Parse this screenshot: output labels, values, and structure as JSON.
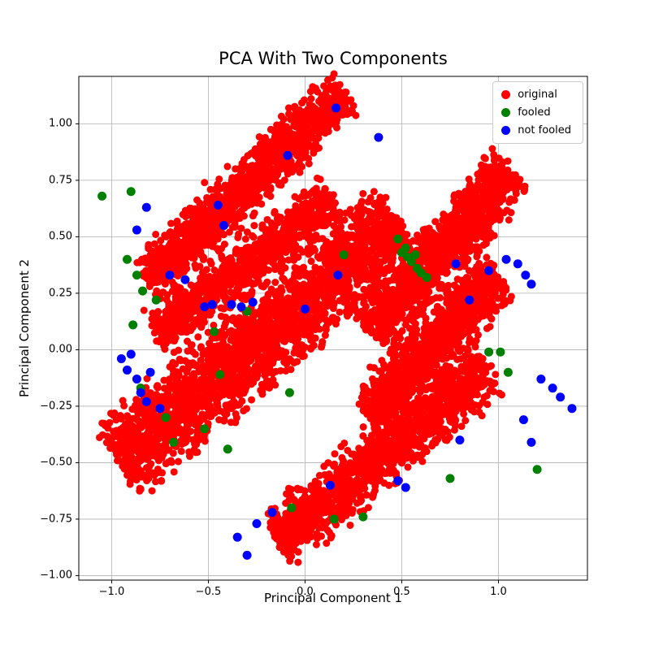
{
  "chart_data": {
    "type": "scatter",
    "title": "PCA With Two Components",
    "xlabel": "Principal Component 1",
    "ylabel": "Principal Component 2",
    "xlim": [
      -1.17,
      1.46
    ],
    "ylim": [
      -1.02,
      1.21
    ],
    "grid": true,
    "grid_color": "#b0b0b0",
    "legend_position": "upper right",
    "xticks": {
      "values": [
        -1.0,
        -0.5,
        0.0,
        0.5,
        1.0
      ],
      "labels": [
        "−1.0",
        "−0.5",
        "0.0",
        "0.5",
        "1.0"
      ]
    },
    "yticks": {
      "values": [
        -1.0,
        -0.75,
        -0.5,
        -0.25,
        0.0,
        0.25,
        0.5,
        0.75,
        1.0
      ],
      "labels": [
        "−1.00",
        "−0.75",
        "−0.50",
        "−0.25",
        "0.00",
        "0.25",
        "0.50",
        "0.75",
        "1.00"
      ]
    },
    "series": [
      {
        "name": "original",
        "color": "#ff0000",
        "marker_radius": 4.5,
        "clusters": [
          {
            "from": [
              -0.8,
              0.32
            ],
            "to": [
              0.18,
              1.12
            ],
            "sigma": 0.05,
            "n": 1300
          },
          {
            "from": [
              -0.75,
              0.07
            ],
            "to": [
              0.12,
              0.66
            ],
            "sigma": 0.05,
            "n": 900
          },
          {
            "from": [
              -0.93,
              -0.48
            ],
            "to": [
              0.45,
              0.55
            ],
            "sigma": 0.085,
            "n": 2400
          },
          {
            "from": [
              0.35,
              0.09
            ],
            "to": [
              1.05,
              0.78
            ],
            "sigma": 0.062,
            "n": 1100
          },
          {
            "from": [
              0.33,
              -0.28
            ],
            "to": [
              0.98,
              0.32
            ],
            "sigma": 0.058,
            "n": 950
          },
          {
            "from": [
              -0.12,
              -0.83
            ],
            "to": [
              0.92,
              -0.09
            ],
            "sigma": 0.06,
            "n": 1200
          }
        ],
        "extra_points": [
          [
            -0.52,
            0.74
          ],
          [
            -0.35,
            0.76
          ],
          [
            0.4,
            0.6
          ],
          [
            0.12,
            0.57
          ],
          [
            -0.45,
            0.72
          ]
        ]
      },
      {
        "name": "fooled",
        "color": "#008000",
        "marker_radius": 5.5,
        "points": [
          [
            -1.05,
            0.68
          ],
          [
            -0.9,
            0.7
          ],
          [
            -0.92,
            0.4
          ],
          [
            -0.87,
            0.33
          ],
          [
            -0.89,
            0.11
          ],
          [
            -0.84,
            0.26
          ],
          [
            -0.77,
            0.22
          ],
          [
            -0.85,
            -0.17
          ],
          [
            -0.72,
            -0.3
          ],
          [
            -0.68,
            -0.41
          ],
          [
            -0.52,
            -0.35
          ],
          [
            -0.47,
            0.08
          ],
          [
            -0.44,
            -0.11
          ],
          [
            -0.4,
            -0.44
          ],
          [
            -0.3,
            0.17
          ],
          [
            -0.08,
            -0.19
          ],
          [
            0.2,
            0.42
          ],
          [
            0.48,
            0.49
          ],
          [
            0.5,
            0.43
          ],
          [
            0.52,
            0.45
          ],
          [
            0.53,
            0.41
          ],
          [
            0.55,
            0.39
          ],
          [
            0.57,
            0.42
          ],
          [
            0.58,
            0.36
          ],
          [
            0.6,
            0.34
          ],
          [
            0.63,
            0.32
          ],
          [
            0.95,
            -0.01
          ],
          [
            1.01,
            -0.01
          ],
          [
            1.05,
            -0.1
          ],
          [
            1.2,
            -0.53
          ],
          [
            0.75,
            -0.57
          ],
          [
            0.15,
            -0.75
          ],
          [
            -0.07,
            -0.7
          ],
          [
            0.3,
            -0.74
          ]
        ]
      },
      {
        "name": "not fooled",
        "color": "#0000ff",
        "marker_radius": 5.5,
        "points": [
          [
            0.16,
            1.07
          ],
          [
            0.38,
            0.94
          ],
          [
            -0.09,
            0.86
          ],
          [
            -0.45,
            0.64
          ],
          [
            -0.42,
            0.55
          ],
          [
            -0.87,
            0.53
          ],
          [
            -0.82,
            0.63
          ],
          [
            -0.7,
            0.33
          ],
          [
            -0.62,
            0.31
          ],
          [
            -0.52,
            0.19
          ],
          [
            -0.48,
            0.2
          ],
          [
            -0.38,
            0.2
          ],
          [
            -0.33,
            0.19
          ],
          [
            -0.27,
            0.21
          ],
          [
            0.0,
            0.18
          ],
          [
            0.17,
            0.33
          ],
          [
            0.78,
            0.38
          ],
          [
            0.95,
            0.35
          ],
          [
            1.04,
            0.4
          ],
          [
            1.1,
            0.38
          ],
          [
            1.14,
            0.33
          ],
          [
            1.17,
            0.29
          ],
          [
            0.85,
            0.22
          ],
          [
            -0.95,
            -0.04
          ],
          [
            -0.9,
            -0.02
          ],
          [
            -0.92,
            -0.09
          ],
          [
            -0.87,
            -0.13
          ],
          [
            -0.85,
            -0.19
          ],
          [
            -0.8,
            -0.1
          ],
          [
            -0.82,
            -0.23
          ],
          [
            -0.75,
            -0.26
          ],
          [
            1.22,
            -0.13
          ],
          [
            1.28,
            -0.17
          ],
          [
            1.32,
            -0.21
          ],
          [
            1.38,
            -0.26
          ],
          [
            1.13,
            -0.31
          ],
          [
            1.17,
            -0.41
          ],
          [
            0.8,
            -0.4
          ],
          [
            0.48,
            -0.58
          ],
          [
            0.52,
            -0.61
          ],
          [
            0.13,
            -0.6
          ],
          [
            -0.17,
            -0.72
          ],
          [
            -0.25,
            -0.77
          ],
          [
            -0.35,
            -0.83
          ],
          [
            -0.3,
            -0.91
          ]
        ]
      }
    ]
  }
}
